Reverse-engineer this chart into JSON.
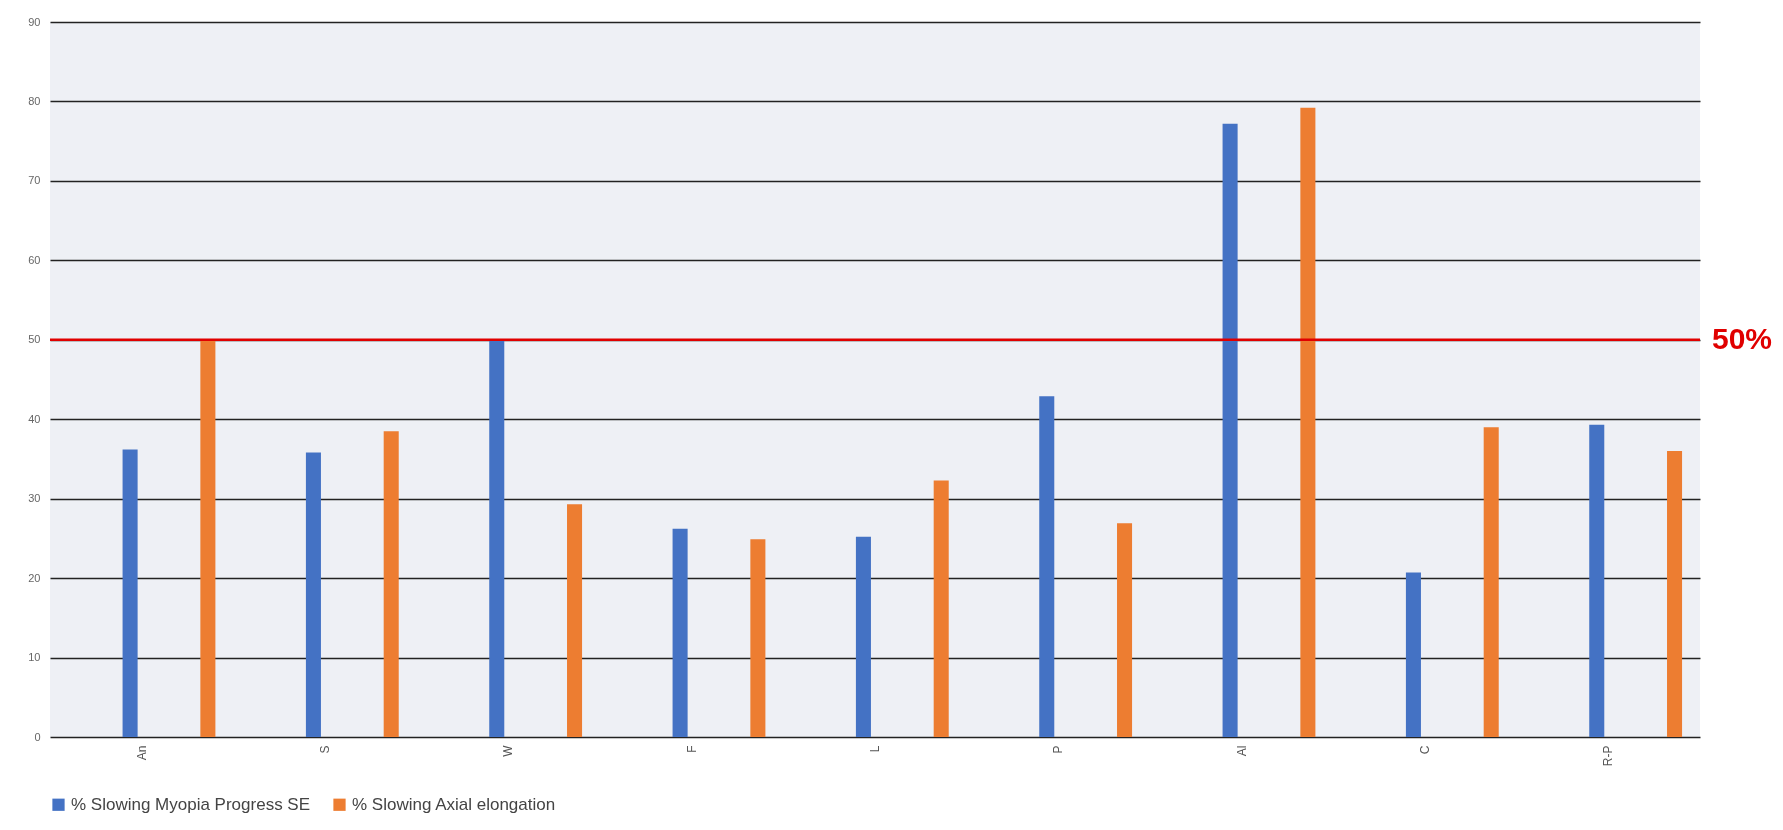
{
  "chart_data": {
    "type": "bar",
    "categories": [
      "An",
      "S",
      "W",
      "F",
      "L",
      "P",
      "Al",
      "C",
      "R-P"
    ],
    "series": [
      {
        "name": "% Slowing Myopia Progress SE",
        "color": "#4472c4",
        "values": [
          36.2,
          35.8,
          50,
          26.2,
          25.2,
          42.9,
          77.2,
          20.7,
          39.3
        ]
      },
      {
        "name": "% Slowing Axial elongation",
        "color": "#ed7d31",
        "values": [
          50,
          38.5,
          29.3,
          24.9,
          32.3,
          26.9,
          79.2,
          39,
          36
        ]
      }
    ],
    "ylim": [
      0,
      90
    ],
    "yticks": [
      0,
      10,
      20,
      30,
      40,
      50,
      60,
      70,
      80,
      90
    ],
    "grid": "y",
    "legend": "bottom",
    "ref_lines": [
      {
        "axis": "y",
        "value": 50,
        "label": "50%",
        "color": "#e00000"
      }
    ]
  }
}
